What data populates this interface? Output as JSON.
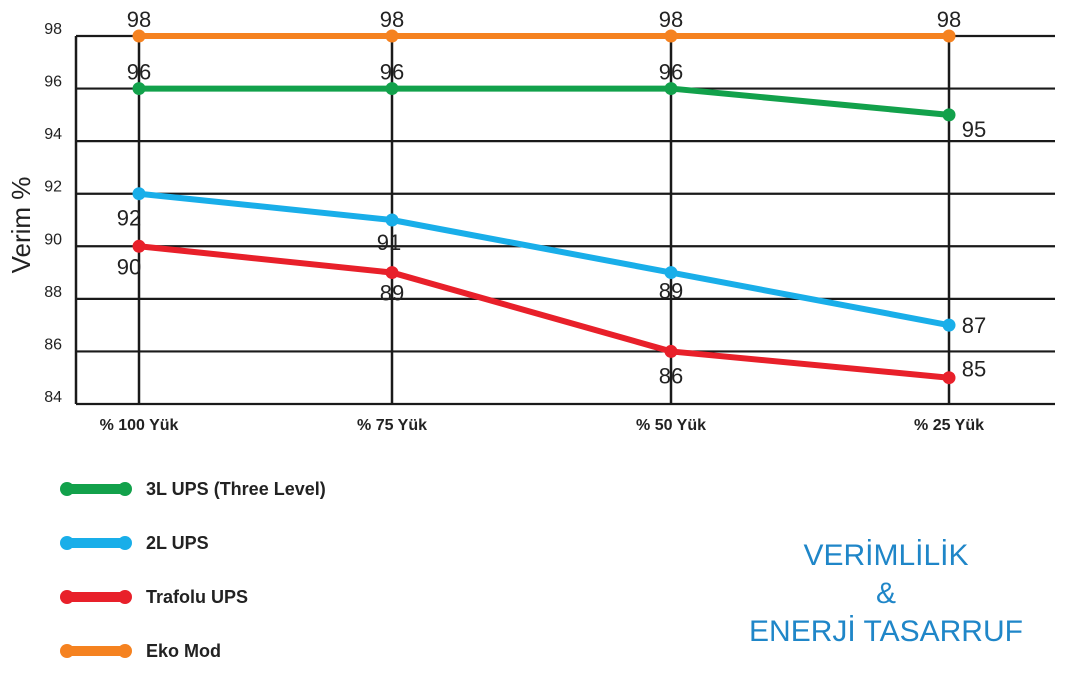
{
  "chart_data": {
    "type": "line",
    "categories": [
      "% 100 Yük",
      "% 75 Yük",
      "% 50 Yük",
      "% 25 Yük"
    ],
    "ylabel": "Verim %",
    "ylim": [
      84,
      98
    ],
    "yticks": [
      "84",
      "86",
      "88",
      "90",
      "92",
      "94",
      "96",
      "98"
    ],
    "grid": true,
    "legend_position": "bottom-left",
    "series": [
      {
        "name": "3L UPS (Three Level)",
        "color": "#12a14b",
        "values": [
          96,
          96,
          96,
          95
        ],
        "labels": [
          "96",
          "96",
          "96",
          "95"
        ]
      },
      {
        "name": "2L UPS",
        "color": "#19aee9",
        "values": [
          92,
          91,
          89,
          87
        ],
        "labels": [
          "92",
          "91",
          "89",
          "87"
        ]
      },
      {
        "name": "Trafolu UPS",
        "color": "#e8202a",
        "values": [
          90,
          89,
          86,
          85
        ],
        "labels": [
          "90",
          "89",
          "86",
          "85"
        ]
      },
      {
        "name": "Eko Mod",
        "color": "#f58220",
        "values": [
          98,
          98,
          98,
          98
        ],
        "labels": [
          "98",
          "98",
          "98",
          "98"
        ]
      }
    ]
  },
  "title": {
    "line1": "VERİMLİLİK",
    "line2": "&",
    "line3": "ENERJİ TASARRUF"
  }
}
